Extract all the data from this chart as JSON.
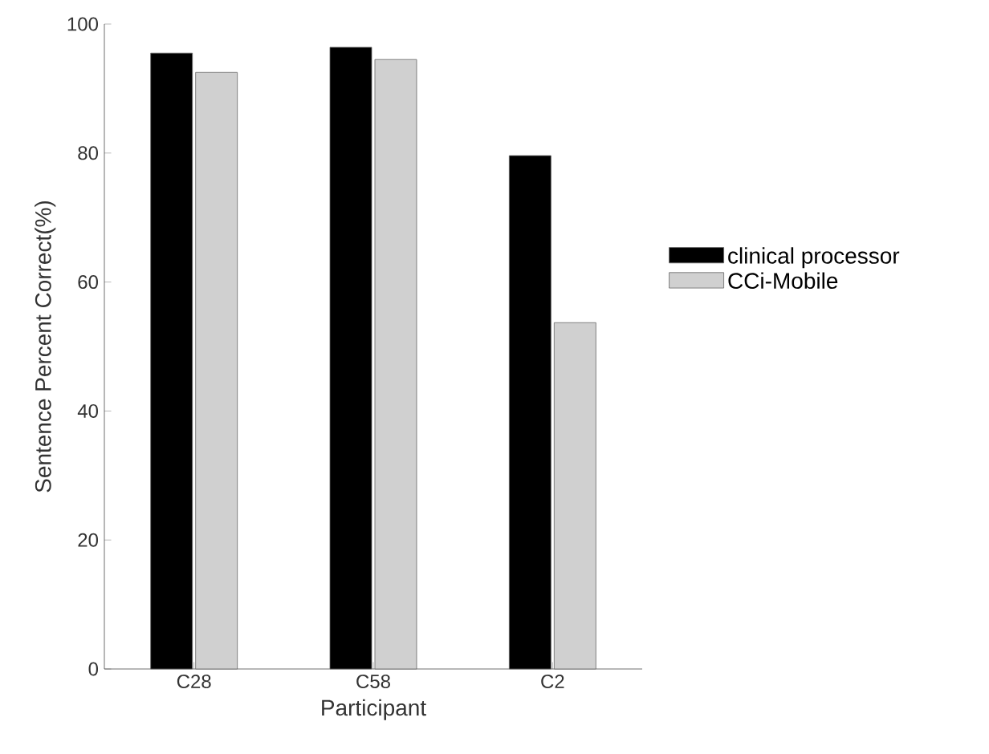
{
  "chart_data": {
    "type": "bar",
    "xlabel": "Participant",
    "ylabel": "Sentence Percent Correct(%)",
    "categories": [
      "C28",
      "C58",
      "C2"
    ],
    "series": [
      {
        "name": "clinical processor",
        "color": "#000000",
        "values": [
          95.5,
          96.4,
          79.6
        ]
      },
      {
        "name": "CCi-Mobile",
        "color": "#d0d0d0",
        "values": [
          92.5,
          94.5,
          53.7
        ]
      }
    ],
    "ylim": [
      0,
      100
    ],
    "yticks": [
      0,
      20,
      40,
      60,
      80,
      100
    ],
    "grid": false,
    "legend": "right"
  }
}
